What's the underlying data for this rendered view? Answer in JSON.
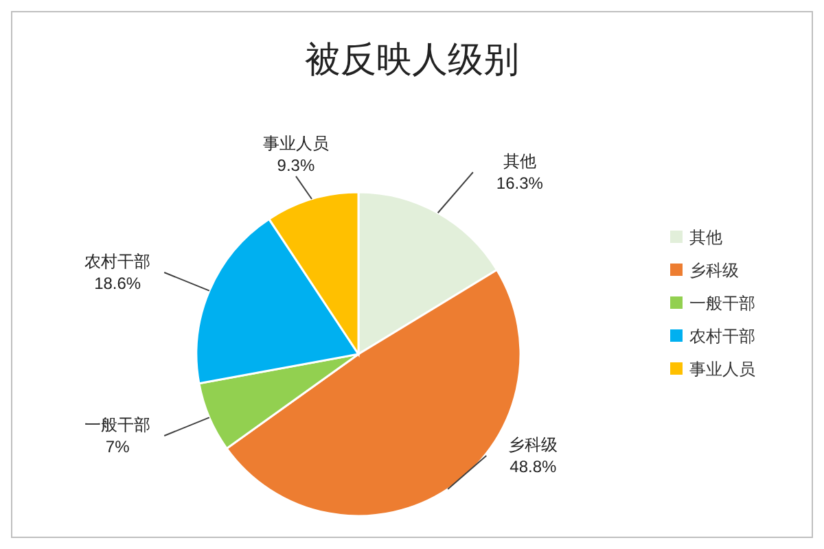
{
  "chart_data": {
    "type": "pie",
    "title": "被反映人级别",
    "categories": [
      "其他",
      "乡科级",
      "一般干部",
      "农村干部",
      "事业人员"
    ],
    "values": [
      16.3,
      48.8,
      7,
      18.6,
      9.3
    ],
    "value_labels": [
      "16.3%",
      "48.8%",
      "7%",
      "18.6%",
      "9.3%"
    ],
    "colors": [
      "#e2efda",
      "#ed7d31",
      "#92d050",
      "#00b0f0",
      "#ffc000"
    ],
    "legend": "right"
  }
}
